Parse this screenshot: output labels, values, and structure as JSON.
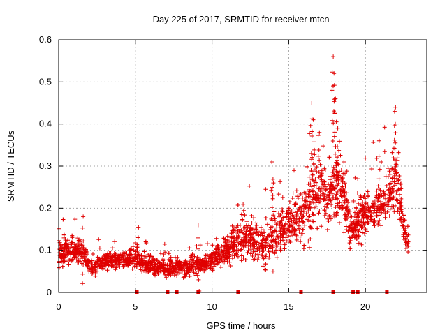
{
  "chart_data": {
    "type": "scatter",
    "title": "Day 225 of 2017, SRMTID for receiver mtcn",
    "xlabel": "GPS time / hours",
    "ylabel": "SRMTID / TECUs",
    "xlim": [
      0,
      24
    ],
    "ylim": [
      0,
      0.6
    ],
    "xticks": [
      "0",
      "5",
      "10",
      "15",
      "20"
    ],
    "xtick_values": [
      0,
      5,
      10,
      15,
      20
    ],
    "yticks": [
      "0",
      "0.1",
      "0.2",
      "0.3",
      "0.4",
      "0.5",
      "0.6"
    ],
    "ytick_values": [
      0,
      0.1,
      0.2,
      0.3,
      0.4,
      0.5,
      0.6
    ],
    "grid": true,
    "marker": "plus",
    "color": "#e00000",
    "series": [
      {
        "name": "SRMTID",
        "profile_x": [
          0,
          0.5,
          1,
          1.5,
          2,
          2.5,
          3,
          3.5,
          4,
          4.5,
          5,
          5.5,
          6,
          6.5,
          7,
          7.5,
          8,
          8.5,
          9,
          9.5,
          10,
          10.5,
          11,
          11.5,
          12,
          12.5,
          13,
          13.5,
          14,
          14.5,
          15,
          15.5,
          16,
          16.5,
          17,
          17.5,
          18,
          18.5,
          19,
          19.5,
          20,
          20.5,
          21,
          21.5,
          22,
          22.5,
          22.8
        ],
        "profile_median": [
          0.09,
          0.1,
          0.1,
          0.1,
          0.06,
          0.065,
          0.075,
          0.08,
          0.075,
          0.08,
          0.085,
          0.07,
          0.065,
          0.06,
          0.055,
          0.06,
          0.06,
          0.06,
          0.065,
          0.07,
          0.08,
          0.09,
          0.1,
          0.12,
          0.13,
          0.13,
          0.12,
          0.12,
          0.13,
          0.15,
          0.17,
          0.17,
          0.18,
          0.22,
          0.25,
          0.22,
          0.26,
          0.24,
          0.15,
          0.16,
          0.19,
          0.2,
          0.2,
          0.23,
          0.28,
          0.15,
          0.11
        ],
        "profile_spread": [
          0.03,
          0.03,
          0.03,
          0.03,
          0.015,
          0.02,
          0.02,
          0.02,
          0.02,
          0.02,
          0.025,
          0.02,
          0.02,
          0.02,
          0.02,
          0.02,
          0.02,
          0.02,
          0.02,
          0.02,
          0.025,
          0.03,
          0.035,
          0.04,
          0.045,
          0.05,
          0.04,
          0.05,
          0.05,
          0.05,
          0.05,
          0.05,
          0.06,
          0.08,
          0.08,
          0.07,
          0.08,
          0.06,
          0.04,
          0.04,
          0.05,
          0.05,
          0.05,
          0.06,
          0.07,
          0.04,
          0.03
        ],
        "peaks": [
          {
            "x": 17.9,
            "y": 0.56
          },
          {
            "x": 17.95,
            "y": 0.52
          },
          {
            "x": 18.05,
            "y": 0.46
          },
          {
            "x": 16.5,
            "y": 0.45
          },
          {
            "x": 21.9,
            "y": 0.43
          },
          {
            "x": 16.6,
            "y": 0.41
          },
          {
            "x": 21.95,
            "y": 0.4
          },
          {
            "x": 18.2,
            "y": 0.39
          },
          {
            "x": 17.0,
            "y": 0.38
          },
          {
            "x": 20.9,
            "y": 0.36
          },
          {
            "x": 13.9,
            "y": 0.31
          },
          {
            "x": 18.6,
            "y": 0.31
          },
          {
            "x": 14.0,
            "y": 0.26
          },
          {
            "x": 19.5,
            "y": 0.27
          },
          {
            "x": 1.6,
            "y": 0.18
          },
          {
            "x": 9.1,
            "y": 0.16
          }
        ],
        "count": 2800
      }
    ],
    "gap_markers_x": [
      5.1,
      7.1,
      7.7,
      9.1,
      11.7,
      15.8,
      17.9,
      19.2,
      19.5,
      21.4
    ]
  }
}
